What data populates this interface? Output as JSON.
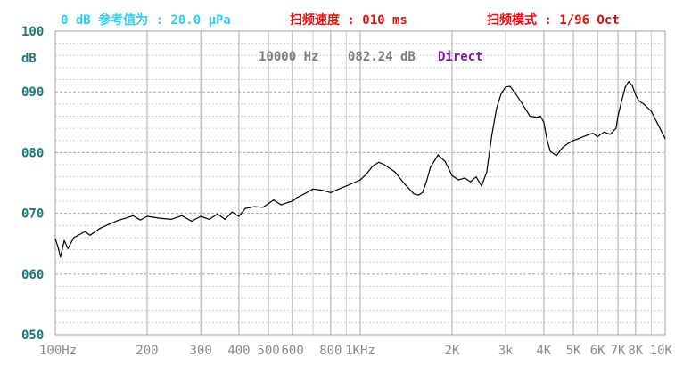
{
  "header": {
    "reference": "0 dB 参考值为 : 20.0 μPa",
    "sweep_speed": "扫频速度 : 010 ms",
    "sweep_mode": "扫频模式 : 1/96 Oct"
  },
  "readout": {
    "frequency": "10000 Hz",
    "level": "082.24 dB",
    "mode": "Direct"
  },
  "colors": {
    "header_ref": "#33ccee",
    "header_red": "#dd1111",
    "readout_gray": "#7a7a7a",
    "readout_mode": "#7a1a9a",
    "axis_label": "#1a7a7a",
    "grid_major": "#a8a8a8",
    "grid_minor": "#d0d0d0",
    "trace": "#000000"
  },
  "chart_data": {
    "type": "line",
    "x_scale": "log",
    "xlim": [
      100,
      10000
    ],
    "ylim": [
      50,
      100
    ],
    "grid": true,
    "xlabel": "",
    "ylabel": "dB",
    "y_ticks": [
      {
        "value": 100,
        "label": "100"
      },
      {
        "value": 90,
        "label": "090"
      },
      {
        "value": 80,
        "label": "080"
      },
      {
        "value": 70,
        "label": "070"
      },
      {
        "value": 60,
        "label": "060"
      },
      {
        "value": 50,
        "label": "050"
      }
    ],
    "x_ticks": [
      {
        "value": 100,
        "label": "100Hz"
      },
      {
        "value": 200,
        "label": "200"
      },
      {
        "value": 300,
        "label": "300"
      },
      {
        "value": 400,
        "label": "400"
      },
      {
        "value": 500,
        "label": "500"
      },
      {
        "value": 600,
        "label": "600"
      },
      {
        "value": 800,
        "label": "800"
      },
      {
        "value": 1000,
        "label": "1KHz"
      },
      {
        "value": 2000,
        "label": "2K"
      },
      {
        "value": 3000,
        "label": "3k"
      },
      {
        "value": 4000,
        "label": "4K"
      },
      {
        "value": 5000,
        "label": "5K"
      },
      {
        "value": 6000,
        "label": "6K"
      },
      {
        "value": 7000,
        "label": "7K"
      },
      {
        "value": 8000,
        "label": "8K"
      },
      {
        "value": 10000,
        "label": "10K"
      }
    ],
    "series": [
      {
        "x": [
          100,
          102,
          104,
          107,
          110,
          115,
          120,
          125,
          130,
          140,
          150,
          160,
          170,
          180,
          190,
          200,
          220,
          240,
          260,
          280,
          300,
          320,
          340,
          360,
          380,
          400,
          420,
          450,
          480,
          500,
          520,
          550,
          580,
          600,
          620,
          650,
          700,
          750,
          800,
          850,
          900,
          950,
          1000,
          1050,
          1100,
          1150,
          1200,
          1300,
          1400,
          1500,
          1550,
          1600,
          1650,
          1700,
          1800,
          1900,
          2000,
          2100,
          2200,
          2300,
          2400,
          2500,
          2600,
          2700,
          2800,
          2900,
          3000,
          3100,
          3200,
          3400,
          3600,
          3800,
          3900,
          4000,
          4100,
          4200,
          4400,
          4600,
          4800,
          5000,
          5200,
          5500,
          5800,
          6000,
          6300,
          6600,
          6900,
          7000,
          7200,
          7400,
          7600,
          7800,
          8000,
          8200,
          8500,
          9000,
          9500,
          10000
        ],
        "y": [
          65.8,
          64.5,
          62.8,
          65.5,
          64.2,
          66.0,
          66.5,
          67.0,
          66.4,
          67.5,
          68.2,
          68.8,
          69.2,
          69.6,
          68.9,
          69.5,
          69.2,
          69.0,
          69.6,
          68.7,
          69.5,
          69.0,
          69.9,
          69.0,
          70.2,
          69.5,
          70.8,
          71.1,
          71.0,
          71.6,
          72.2,
          71.4,
          71.8,
          72.0,
          72.6,
          73.1,
          74.0,
          73.8,
          73.4,
          74.0,
          74.5,
          75.0,
          75.5,
          76.5,
          77.8,
          78.4,
          78.0,
          76.8,
          74.8,
          73.2,
          73.0,
          73.4,
          75.3,
          77.6,
          79.6,
          78.5,
          76.2,
          75.5,
          75.8,
          75.2,
          76.0,
          74.5,
          76.8,
          82.8,
          87.3,
          89.7,
          90.8,
          90.9,
          90.0,
          88.0,
          86.0,
          85.8,
          86.0,
          85.0,
          82.0,
          80.2,
          79.5,
          80.8,
          81.5,
          82.0,
          82.3,
          82.8,
          83.2,
          82.6,
          83.4,
          83.0,
          84.0,
          86.0,
          88.5,
          90.8,
          91.7,
          91.0,
          89.5,
          88.5,
          88.0,
          86.8,
          84.5,
          82.3
        ]
      }
    ]
  }
}
